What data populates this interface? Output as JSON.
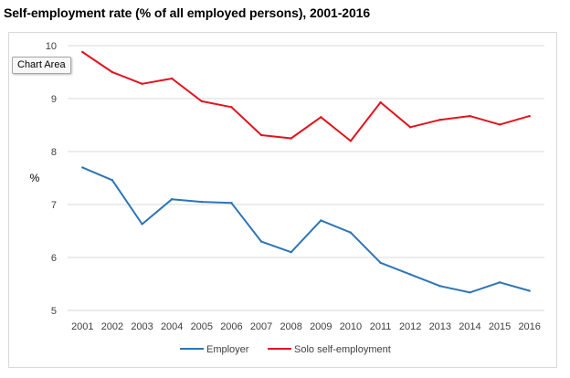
{
  "page": {
    "title": "Self-employment rate (% of all employed persons), 2001-2016",
    "tooltip": "Chart Area"
  },
  "chart_data": {
    "type": "line",
    "title": "Self-employment rate (% of all employed persons), 2001-2016",
    "xlabel": "",
    "ylabel": "%",
    "x": [
      "2001",
      "2002",
      "2003",
      "2004",
      "2005",
      "2006",
      "2007",
      "2008",
      "2009",
      "2010",
      "2011",
      "2012",
      "2013",
      "2014",
      "2015",
      "2016"
    ],
    "ylim": [
      5,
      10
    ],
    "yticks": [
      5,
      6,
      7,
      8,
      9,
      10
    ],
    "grid": true,
    "legend_position": "bottom",
    "series": [
      {
        "name": "Employer",
        "color": "#2e75b6",
        "values": [
          7.7,
          7.46,
          6.63,
          7.1,
          7.05,
          7.03,
          6.3,
          6.1,
          6.7,
          6.47,
          5.9,
          5.68,
          5.46,
          5.34,
          5.53,
          5.37
        ]
      },
      {
        "name": "Solo self-employment",
        "color": "#e0141e",
        "values": [
          9.88,
          9.5,
          9.28,
          9.38,
          8.95,
          8.84,
          8.31,
          8.25,
          8.65,
          8.2,
          8.93,
          8.46,
          8.6,
          8.67,
          8.51,
          8.67
        ]
      }
    ]
  }
}
